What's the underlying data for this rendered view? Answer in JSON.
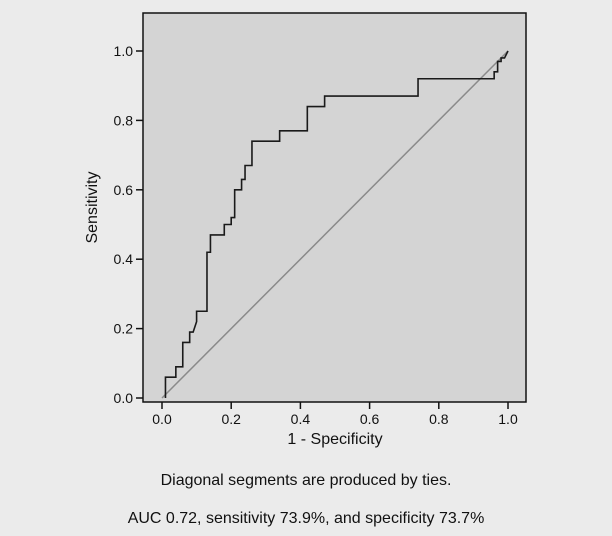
{
  "chart_data": {
    "type": "line",
    "title": "",
    "xlabel": "1 - Specificity",
    "ylabel": "Sensitivity",
    "xlim": [
      0.0,
      1.0
    ],
    "ylim": [
      0.0,
      1.0
    ],
    "xticks": [
      "0.0",
      "0.2",
      "0.4",
      "0.6",
      "0.8",
      "1.0"
    ],
    "yticks": [
      "0.0",
      "0.2",
      "0.4",
      "0.6",
      "0.8",
      "1.0"
    ],
    "grid": false,
    "colors": {
      "plot_background": "#d4d4d4",
      "roc_line": "#1a1a1a",
      "reference_line": "#8a8a8a"
    },
    "series": [
      {
        "points": [
          [
            0.01,
            0.0
          ],
          [
            0.01,
            0.06
          ],
          [
            0.04,
            0.06
          ],
          [
            0.04,
            0.09
          ],
          [
            0.06,
            0.09
          ],
          [
            0.06,
            0.16
          ],
          [
            0.08,
            0.16
          ],
          [
            0.08,
            0.19
          ],
          [
            0.09,
            0.19
          ],
          [
            0.1,
            0.22
          ],
          [
            0.1,
            0.25
          ],
          [
            0.13,
            0.25
          ],
          [
            0.13,
            0.42
          ],
          [
            0.14,
            0.42
          ],
          [
            0.14,
            0.47
          ],
          [
            0.18,
            0.47
          ],
          [
            0.18,
            0.5
          ],
          [
            0.2,
            0.5
          ],
          [
            0.2,
            0.52
          ],
          [
            0.21,
            0.52
          ],
          [
            0.21,
            0.6
          ],
          [
            0.23,
            0.6
          ],
          [
            0.23,
            0.63
          ],
          [
            0.24,
            0.63
          ],
          [
            0.24,
            0.67
          ],
          [
            0.26,
            0.67
          ],
          [
            0.26,
            0.74
          ],
          [
            0.34,
            0.74
          ],
          [
            0.34,
            0.77
          ],
          [
            0.42,
            0.77
          ],
          [
            0.42,
            0.84
          ],
          [
            0.47,
            0.84
          ],
          [
            0.47,
            0.87
          ],
          [
            0.74,
            0.87
          ],
          [
            0.74,
            0.92
          ],
          [
            0.96,
            0.92
          ],
          [
            0.96,
            0.94
          ],
          [
            0.97,
            0.94
          ],
          [
            0.97,
            0.97
          ],
          [
            0.98,
            0.97
          ],
          [
            0.98,
            0.98
          ],
          [
            0.99,
            0.98
          ],
          [
            1.0,
            1.0
          ]
        ]
      },
      {
        "points": [
          [
            0.0,
            0.0
          ],
          [
            1.0,
            1.0
          ]
        ]
      }
    ]
  },
  "captions": {
    "note": "Diagonal segments are produced by ties.",
    "stats": "AUC 0.72, sensitivity 73.9%, and specificity 73.7%"
  }
}
